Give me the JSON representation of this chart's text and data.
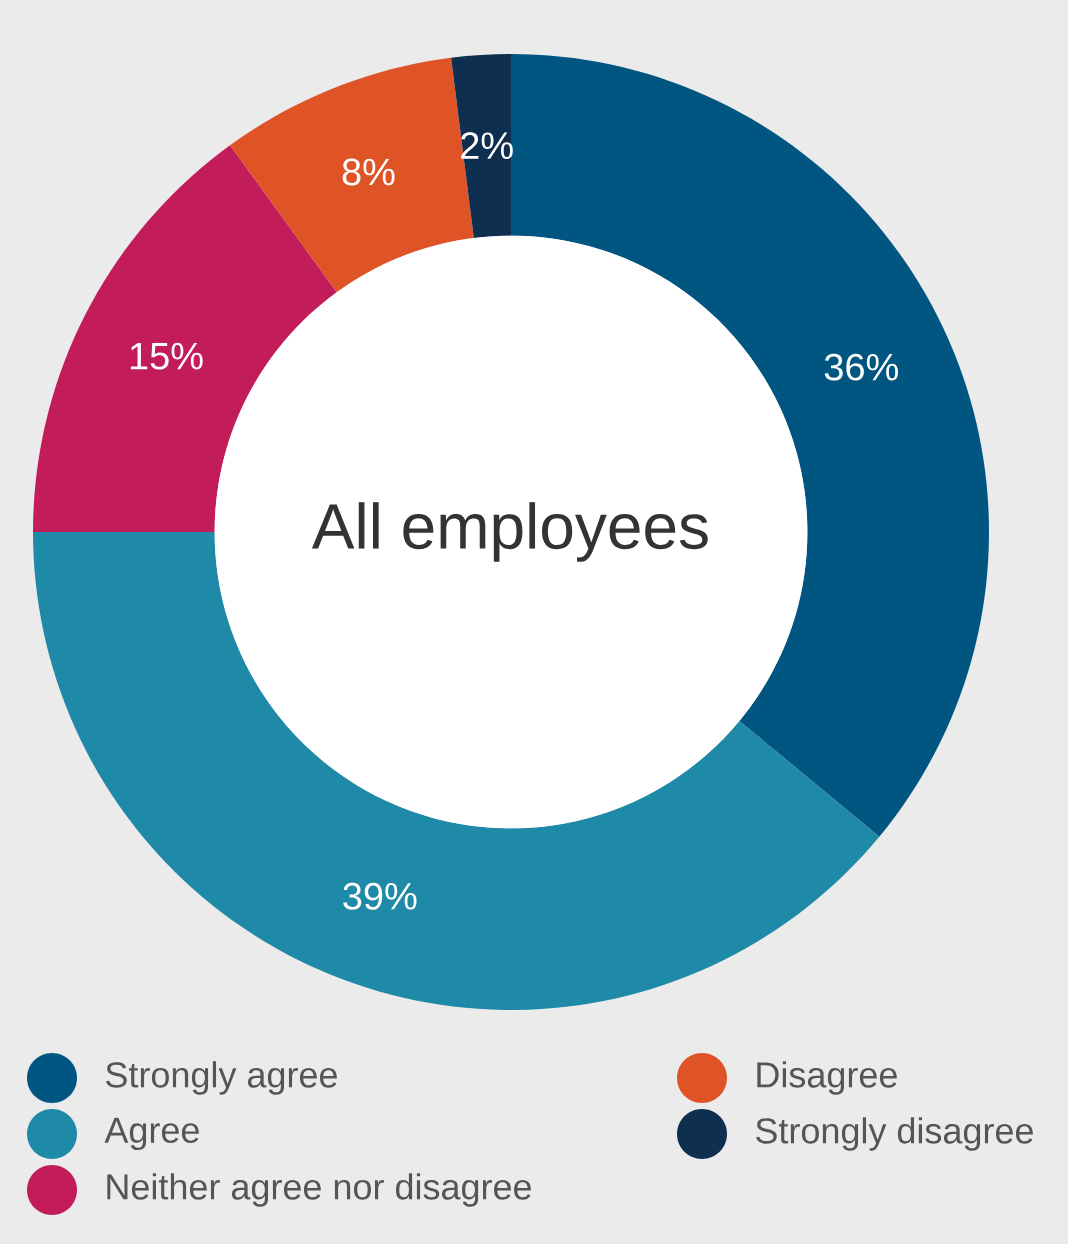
{
  "chart_data": {
    "type": "donut",
    "title": "All employees",
    "categories": [
      "Strongly agree",
      "Agree",
      "Neither agree nor disagree",
      "Disagree",
      "Strongly disagree"
    ],
    "values": [
      36,
      39,
      15,
      8,
      2
    ],
    "value_labels": [
      "36%",
      "39%",
      "15%",
      "8%",
      "2%"
    ],
    "colors": [
      "#005581",
      "#1f8aa8",
      "#c21d5a",
      "#de5427",
      "#0e2f50"
    ],
    "legend": "bottom"
  }
}
